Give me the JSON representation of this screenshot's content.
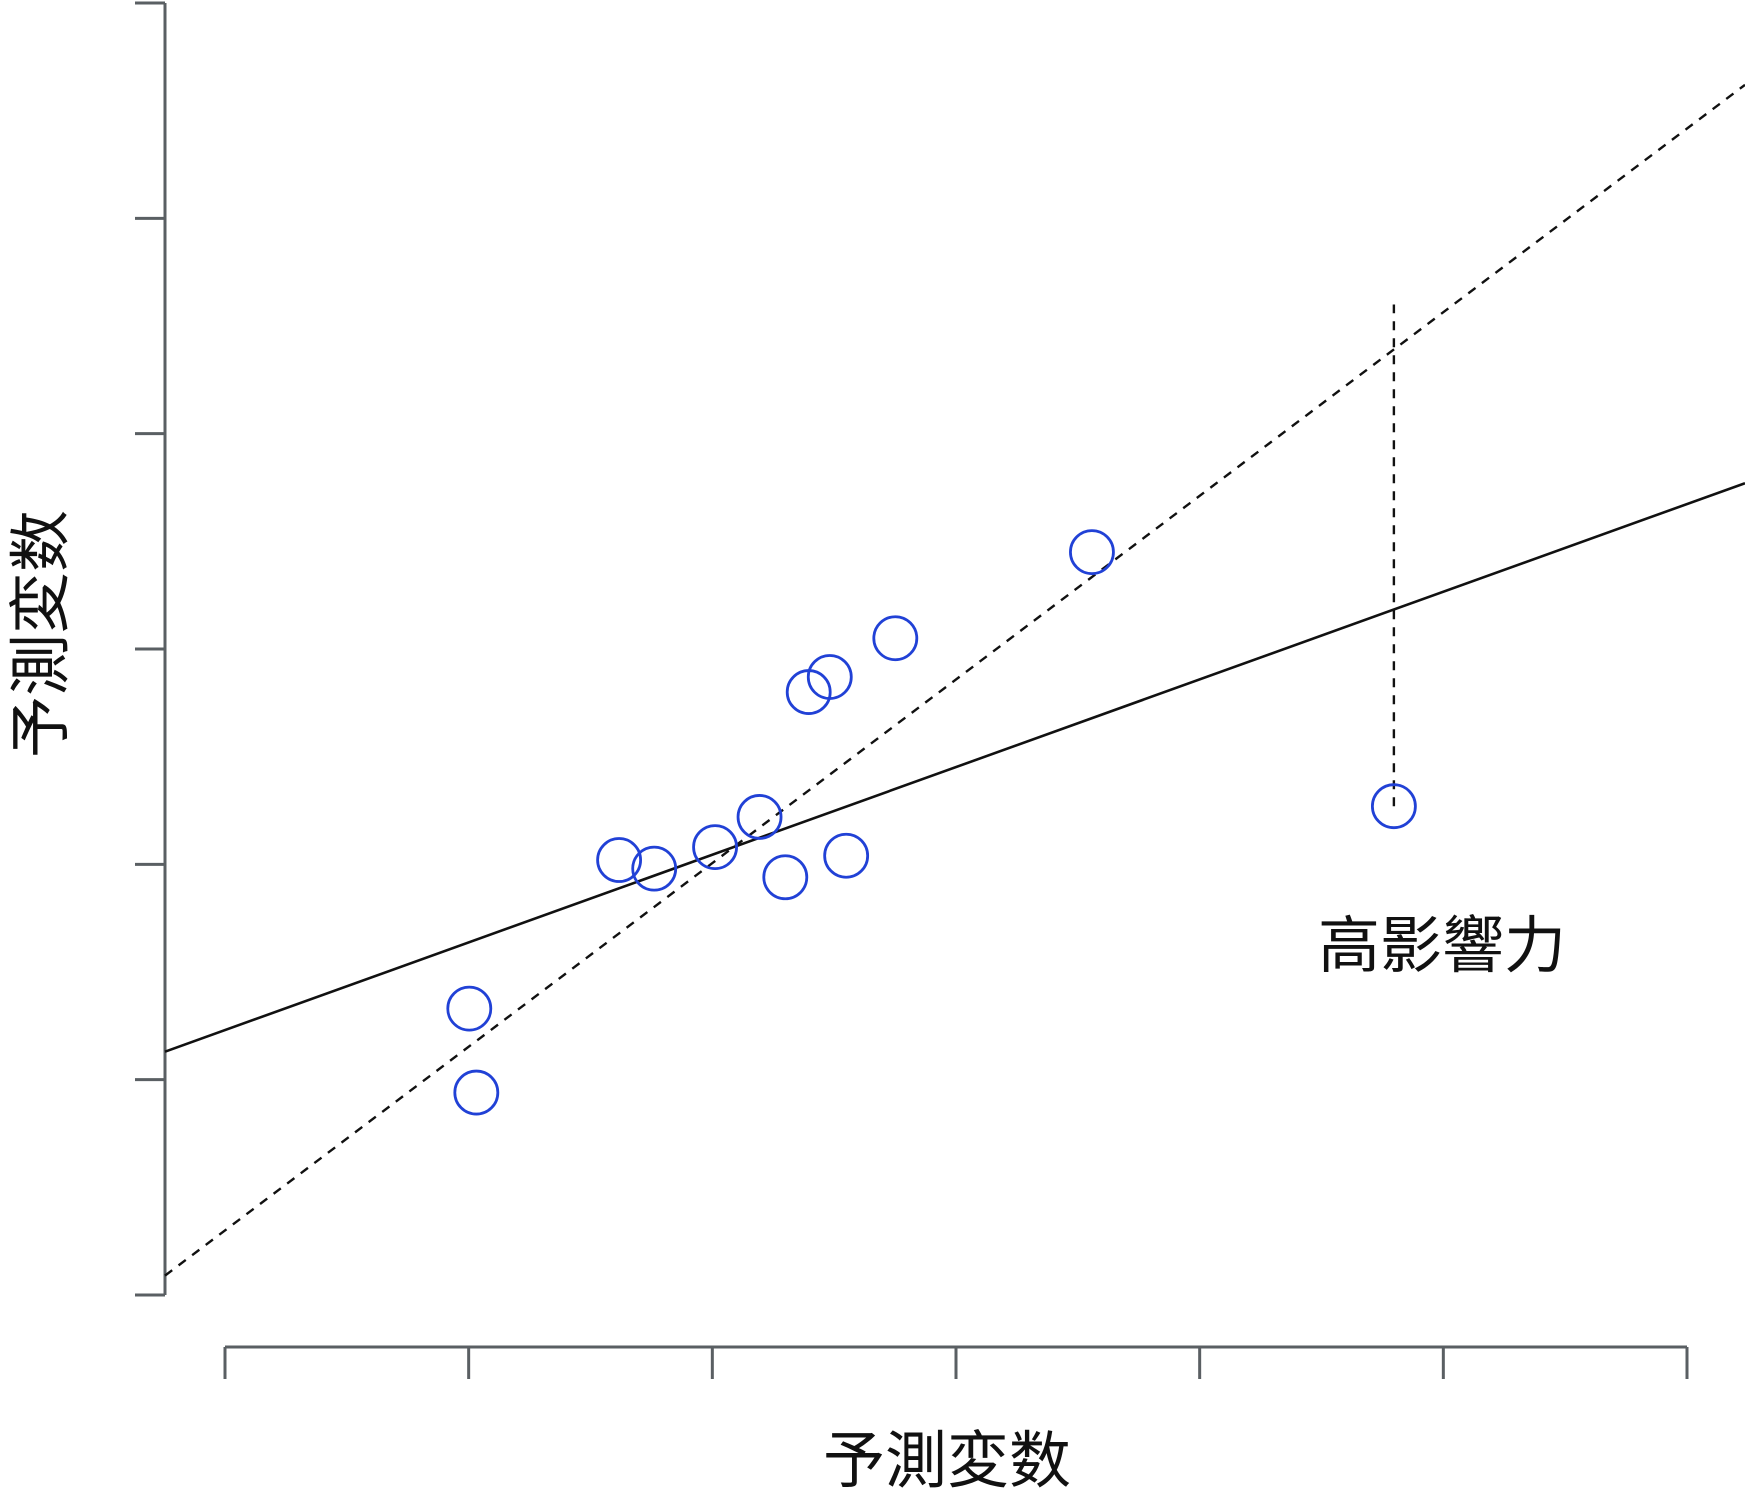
{
  "chart_data": {
    "type": "scatter",
    "xlabel": "予測変数",
    "ylabel": "予測変数",
    "x_tick_count": 7,
    "y_tick_count": 7,
    "xlim": [
      -0.25,
      6.5
    ],
    "ylim": [
      0,
      6
    ],
    "x_ticks": [
      0,
      1,
      2,
      3,
      4,
      5,
      6
    ],
    "y_ticks": [
      0,
      1,
      2,
      3,
      4,
      5,
      6
    ],
    "points": [
      {
        "x": 1.05,
        "y": 1.33
      },
      {
        "x": 1.08,
        "y": 0.94
      },
      {
        "x": 1.69,
        "y": 2.02
      },
      {
        "x": 1.84,
        "y": 1.98
      },
      {
        "x": 2.1,
        "y": 2.08
      },
      {
        "x": 2.29,
        "y": 2.22
      },
      {
        "x": 2.4,
        "y": 1.94
      },
      {
        "x": 2.5,
        "y": 2.8
      },
      {
        "x": 2.59,
        "y": 2.87
      },
      {
        "x": 2.66,
        "y": 2.04
      },
      {
        "x": 2.87,
        "y": 3.05
      },
      {
        "x": 3.71,
        "y": 3.45
      },
      {
        "x": 5.0,
        "y": 2.27
      }
    ],
    "lines": [
      {
        "style": "solid",
        "from": {
          "x": -0.25,
          "y": 1.13
        },
        "to": {
          "x": 6.5,
          "y": 3.77
        }
      },
      {
        "style": "dashed",
        "from": {
          "x": -0.25,
          "y": 0.09
        },
        "to": {
          "x": 6.5,
          "y": 5.62
        }
      }
    ],
    "annotations": [
      {
        "text": "高影響力",
        "type": "label"
      },
      {
        "type": "dashed-vertical-residual",
        "x": 5.0,
        "from_y": 2.27,
        "to_y": 4.6
      }
    ],
    "grid": false,
    "legend": "none"
  },
  "colors": {
    "axis": "#5a5f63",
    "point": "#2141d6",
    "line": "#111111"
  }
}
